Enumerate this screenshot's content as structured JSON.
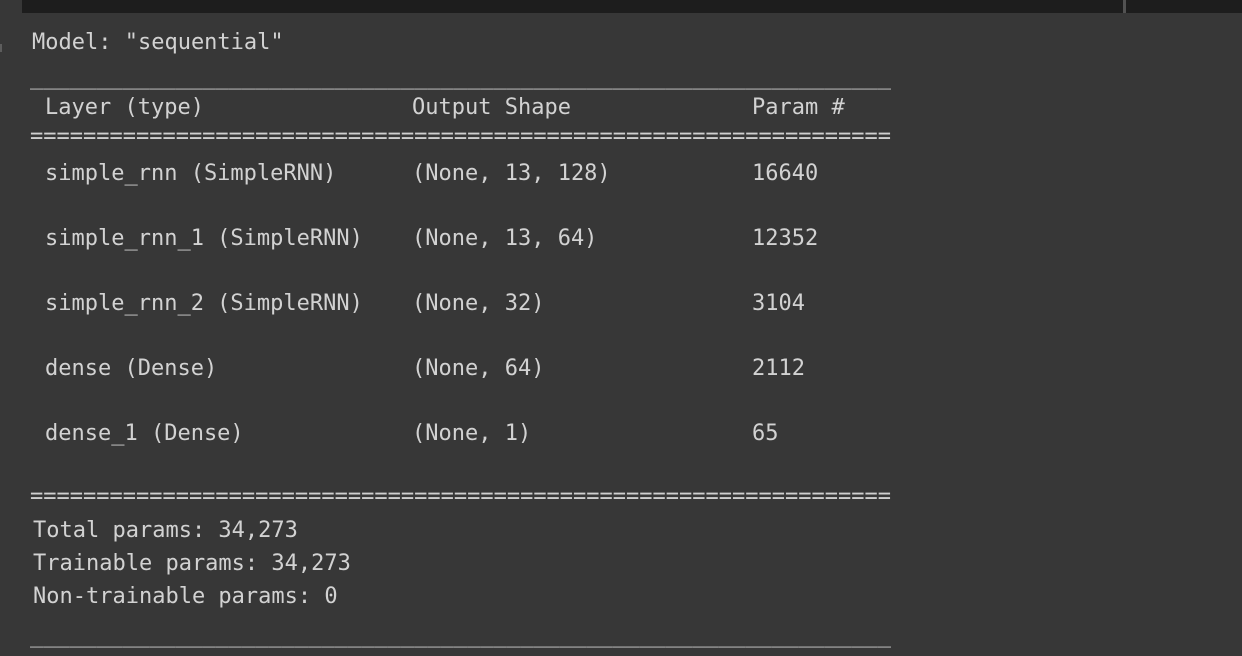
{
  "colors": {
    "background": "#373737",
    "topbar": "#1d1d1d",
    "topbar_divider": "#525252",
    "text": "#d2d2d2"
  },
  "console": {
    "model_line": "Model: \"sequential\"",
    "separator_thin": "_________________________________________________________________",
    "separator_thick": "=================================================================",
    "table": {
      "headers": [
        "Layer (type)",
        "Output Shape",
        "Param #"
      ],
      "rows": [
        {
          "layer": "simple_rnn (SimpleRNN)",
          "output_shape": "(None, 13, 128)",
          "params": "16640"
        },
        {
          "layer": "simple_rnn_1 (SimpleRNN)",
          "output_shape": "(None, 13, 64)",
          "params": "12352"
        },
        {
          "layer": "simple_rnn_2 (SimpleRNN)",
          "output_shape": "(None, 32)",
          "params": "3104"
        },
        {
          "layer": "dense (Dense)",
          "output_shape": "(None, 64)",
          "params": "2112"
        },
        {
          "layer": "dense_1 (Dense)",
          "output_shape": "(None, 1)",
          "params": "65"
        }
      ]
    },
    "totals": [
      "Total params: 34,273",
      "Trainable params: 34,273",
      "Non-trainable params: 0"
    ]
  }
}
